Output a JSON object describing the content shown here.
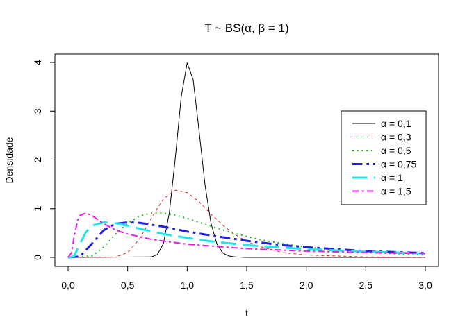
{
  "chart_data": {
    "type": "line",
    "title": "T ~ BS(α, β = 1)",
    "xlabel": "t",
    "ylabel": "Densidade",
    "xlim": [
      0,
      3
    ],
    "ylim": [
      0,
      4
    ],
    "x_ticks": [
      0,
      0.5,
      1,
      1.5,
      2,
      2.5,
      3
    ],
    "x_tick_labels": [
      "0,0",
      "0,5",
      "1,0",
      "1,5",
      "2,0",
      "2,5",
      "3,0"
    ],
    "y_ticks": [
      0,
      1,
      2,
      3,
      4
    ],
    "y_tick_labels": [
      "0",
      "1",
      "2",
      "3",
      "4"
    ],
    "grid": false,
    "legend_position": "right",
    "series": [
      {
        "name": "α = 0,1",
        "color": "#000000",
        "dash": "solid",
        "width": 1,
        "x": [
          0,
          0.7,
          0.75,
          0.8,
          0.85,
          0.9,
          0.95,
          1.0,
          1.05,
          1.1,
          1.15,
          1.2,
          1.25,
          1.3,
          1.35,
          1.4,
          1.5,
          2.0,
          3.0
        ],
        "y": [
          0,
          0.01,
          0.06,
          0.28,
          0.91,
          2.03,
          3.3,
          3.99,
          3.65,
          2.59,
          1.49,
          0.7,
          0.27,
          0.09,
          0.03,
          0.01,
          0,
          0,
          0
        ]
      },
      {
        "name": "α = 0,3",
        "color": "#df2020",
        "dash": "dashed",
        "width": 1,
        "x": [
          0,
          0.3,
          0.4,
          0.5,
          0.6,
          0.7,
          0.8,
          0.9,
          1.0,
          1.1,
          1.2,
          1.3,
          1.4,
          1.5,
          1.6,
          1.8,
          2.0,
          2.5,
          3.0
        ],
        "y": [
          0,
          0,
          0.01,
          0.1,
          0.38,
          0.81,
          1.2,
          1.38,
          1.33,
          1.14,
          0.89,
          0.66,
          0.47,
          0.33,
          0.23,
          0.1,
          0.05,
          0.01,
          0
        ]
      },
      {
        "name": "α = 0,5",
        "color": "#1fb01f",
        "dash": "dotted",
        "width": 2,
        "x": [
          0,
          0.2,
          0.3,
          0.4,
          0.5,
          0.6,
          0.7,
          0.8,
          0.9,
          1.0,
          1.2,
          1.4,
          1.6,
          1.8,
          2.0,
          2.5,
          3.0
        ],
        "y": [
          0,
          0.03,
          0.21,
          0.48,
          0.7,
          0.85,
          0.91,
          0.91,
          0.87,
          0.8,
          0.64,
          0.49,
          0.37,
          0.28,
          0.21,
          0.1,
          0.05
        ]
      },
      {
        "name": "α = 0,75",
        "color": "#1e1ee6",
        "dash": "dashdot",
        "width": 3,
        "x": [
          0,
          0.1,
          0.2,
          0.3,
          0.4,
          0.5,
          0.6,
          0.7,
          0.8,
          1.0,
          1.2,
          1.5,
          1.8,
          2.0,
          2.5,
          3.0
        ],
        "y": [
          0,
          0.02,
          0.28,
          0.56,
          0.69,
          0.72,
          0.71,
          0.67,
          0.63,
          0.53,
          0.45,
          0.34,
          0.25,
          0.21,
          0.13,
          0.09
        ]
      },
      {
        "name": "α = 1",
        "color": "#20e6e6",
        "dash": "longdash",
        "width": 3,
        "x": [
          0,
          0.05,
          0.1,
          0.15,
          0.2,
          0.3,
          0.4,
          0.5,
          0.6,
          0.8,
          1.0,
          1.2,
          1.5,
          2.0,
          2.5,
          3.0
        ],
        "y": [
          0,
          0.02,
          0.28,
          0.52,
          0.65,
          0.72,
          0.7,
          0.65,
          0.59,
          0.48,
          0.4,
          0.33,
          0.25,
          0.17,
          0.12,
          0.08
        ]
      },
      {
        "name": "α = 1,5",
        "color": "#e61ee6",
        "dash": "twodash",
        "width": 2,
        "x": [
          0,
          0.03,
          0.05,
          0.08,
          0.1,
          0.15,
          0.2,
          0.3,
          0.4,
          0.5,
          0.7,
          1.0,
          1.5,
          2.0,
          2.5,
          3.0
        ],
        "y": [
          0,
          0.1,
          0.42,
          0.76,
          0.86,
          0.91,
          0.86,
          0.69,
          0.56,
          0.48,
          0.37,
          0.27,
          0.18,
          0.13,
          0.1,
          0.08
        ]
      }
    ]
  }
}
